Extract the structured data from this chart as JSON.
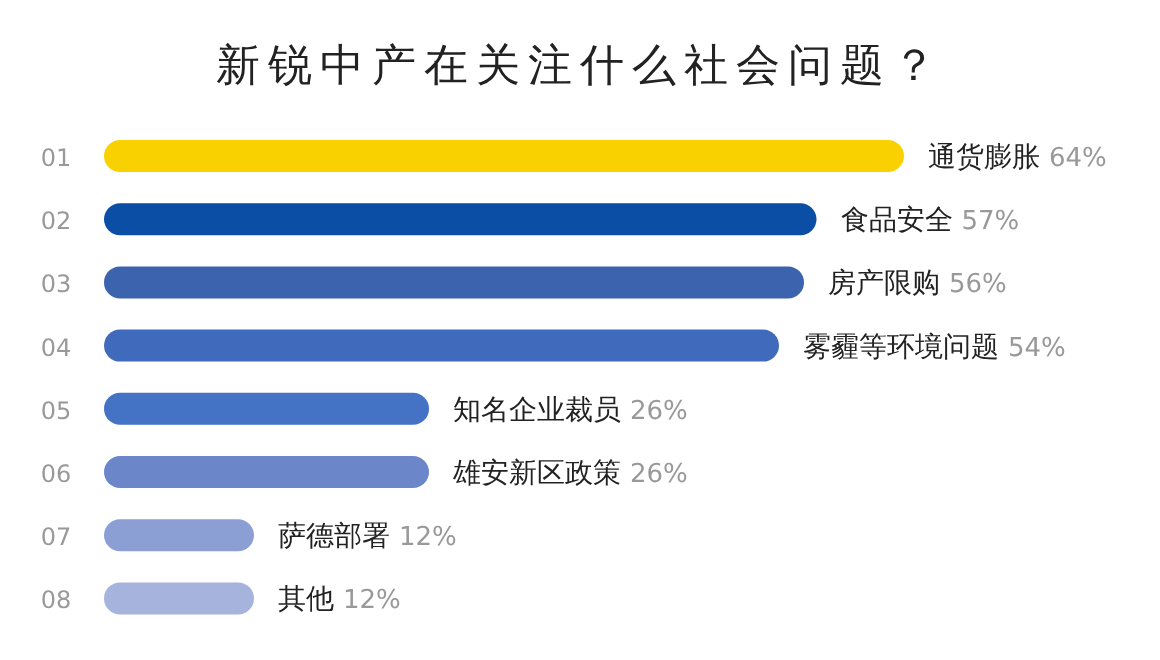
{
  "chart_data": {
    "type": "bar",
    "orientation": "horizontal",
    "title": "新锐中产在关注什么社会问题？",
    "categories": [
      "01",
      "02",
      "03",
      "04",
      "05",
      "06",
      "07",
      "08"
    ],
    "values": [
      64,
      57,
      56,
      54,
      26,
      26,
      12,
      12
    ],
    "colors": [
      "#f9d100",
      "#0a4ea6",
      "#3c63ad",
      "#406bbd",
      "#4472c4",
      "#6c87c9",
      "#8b9fd4",
      "#a6b3dc"
    ],
    "value_labels": [
      "通货膨胀 64%",
      "食品安全 57%",
      "房产限购 56%",
      "雾霾等环境问题 54%",
      "知名企业裁员 26%",
      "雄安新区政策 26%",
      "萨德部署 12%",
      "其他 12%"
    ]
  }
}
